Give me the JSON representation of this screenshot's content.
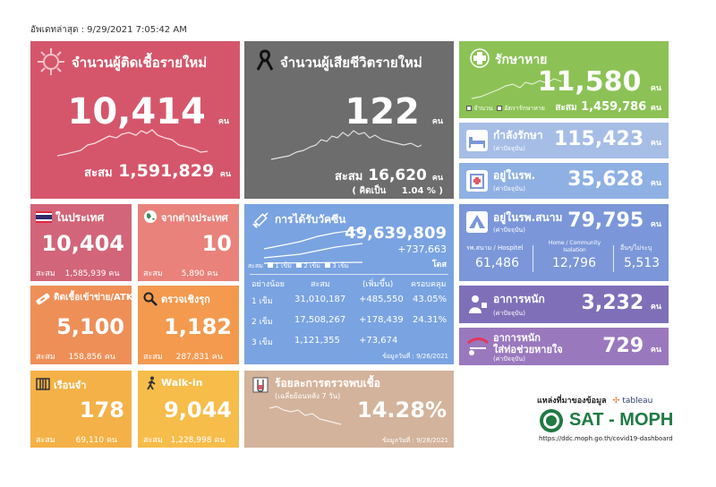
{
  "updated": "อัพเดทล่าสุด : 9/29/2021 7:05:42 AM",
  "unit": "คน",
  "accum_label": "สะสม",
  "colors": {
    "new_cases": "#d5566b",
    "deaths": "#6d6d6d",
    "recovered": "#8cc255",
    "treating": "#a6bde6",
    "hospital": "#8fb0e3",
    "field": "#7b97d9",
    "severe": "#7f6fb8",
    "ventilator": "#9a78bd",
    "domestic": "#d26579",
    "foreign": "#e9827b",
    "atk": "#ee8f57",
    "active": "#f39a4f",
    "prison": "#f4b147",
    "walkin": "#f7bd4b",
    "vaccine": "#7aa3e1",
    "positivity": "#d3b39b"
  },
  "new_cases": {
    "title": "จำนวนผู้ติดเชื้อรายใหม่",
    "value": "10,414",
    "total": "1,591,829",
    "icon": "virus-icon"
  },
  "deaths": {
    "title": "จำนวนผู้เสียชีวิตรายใหม่",
    "value": "122",
    "total": "16,620",
    "percent_label": "( คิดเป็น",
    "percent": "1.04 %",
    "close_paren": ")",
    "icon": "ribbon-icon"
  },
  "recovered": {
    "title": "รักษาหาย",
    "value": "11,580",
    "total": "1,459,786",
    "legend_count": "จำนวน",
    "legend_rate": "อัตรารักษาหาย",
    "icon": "medical-cross-icon"
  },
  "treating": {
    "title": "กำลังรักษา",
    "sub": "(ค่าปัจจุบัน)",
    "value": "115,423",
    "icon": "hospital-bed-icon"
  },
  "hospital": {
    "title": "อยู่ในรพ.",
    "sub": "(ค่าปัจจุบัน)",
    "value": "35,628",
    "icon": "hospital-icon"
  },
  "field_hospital": {
    "title": "อยู่ในรพ.สนาม",
    "sub": "(ค่าปัจจุบัน)",
    "value": "79,795",
    "icon": "tent-icon",
    "cols": [
      {
        "label": "รพ.สนาม / Hospitel",
        "value": "61,486"
      },
      {
        "label": "Home / Community Isolation",
        "value": "12,796"
      },
      {
        "label": "อื่นๆ/ไม่ระบุ",
        "value": "5,513"
      }
    ]
  },
  "severe": {
    "title": "อาการหนัก",
    "sub": "(ค่าปัจจุบัน)",
    "value": "3,232",
    "icon": "patient-icon"
  },
  "ventilator": {
    "title": "อาการหนัก",
    "title2": "ใส่ท่อช่วยหายใจ",
    "sub": "(ค่าปัจจุบัน)",
    "value": "729",
    "icon": "ventilator-icon"
  },
  "domestic": {
    "title": "ในประเทศ",
    "value": "10,404",
    "total": "1,585,939",
    "icon": "thai-flag-icon"
  },
  "foreign": {
    "title": "จากต่างประเทศ",
    "value": "10",
    "total": "5,890",
    "icon": "globe-icon"
  },
  "atk": {
    "title": "ติดเชื้อเข้าข่าย/ATK",
    "value": "5,100",
    "total": "158,856",
    "icon": "test-kit-icon"
  },
  "active_search": {
    "title": "ตรวจเชิงรุก",
    "value": "1,182",
    "total": "287,831",
    "icon": "magnifier-icon"
  },
  "prison": {
    "title": "เรือนจำ",
    "value": "178",
    "total": "69,110",
    "icon": "prison-icon"
  },
  "walkin": {
    "title": "Walk-in",
    "value": "9,044",
    "total": "1,228,998",
    "icon": "walking-icon"
  },
  "vaccine": {
    "title": "การได้รับวัคซีน",
    "total": "49,639,809",
    "delta": "+737,663",
    "dose_unit": "โดส",
    "legend_total": "สะสม",
    "legend_1": "1 เข็ม",
    "legend_2": "2 เข็ม",
    "legend_3": "3 เข็ม",
    "headers": [
      "อย่างน้อย",
      "สะสม",
      "(เพิ่มขึ้น)",
      "ครอบคลุม"
    ],
    "rows": [
      {
        "dose": "1 เข็ม",
        "total": "31,010,187",
        "delta": "+485,550",
        "coverage": "43.05%"
      },
      {
        "dose": "2 เข็ม",
        "total": "17,508,267",
        "delta": "+178,439",
        "coverage": "24.31%"
      },
      {
        "dose": "3 เข็ม",
        "total": "1,121,355",
        "delta": "+73,674",
        "coverage": ""
      }
    ],
    "date": "ข้อมูลวันที่ : 9/26/2021",
    "icon": "syringe-icon"
  },
  "positivity": {
    "title": "ร้อยละการตรวจพบเชื้อ",
    "sub": "(เฉลี่ยย้อนหลัง 7 วัน)",
    "value": "14.28%",
    "date": "ข้อมูลวันที่ : 9/28/2021",
    "icon": "test-tube-icon"
  },
  "source": {
    "label": "แหล่งที่มาของข้อมูล",
    "tableau": "tableau",
    "org": "SAT - MOPH",
    "url": "https://ddc.moph.go.th/covid19-dashboard"
  }
}
